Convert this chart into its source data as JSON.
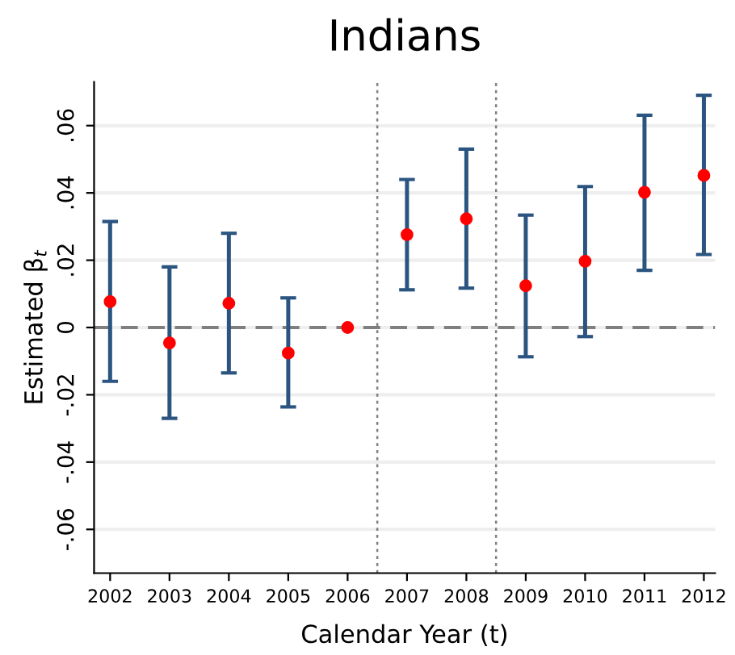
{
  "chart_data": {
    "type": "scatter",
    "title": "Indians",
    "xlabel": "Calendar Year (t)",
    "ylabel": "Estimated β$_{t}$",
    "x": [
      2002,
      2003,
      2004,
      2005,
      2006,
      2007,
      2008,
      2009,
      2010,
      2011,
      2012
    ],
    "series": [
      {
        "color": "#ff0000",
        "values": [
          0.0077,
          -0.0046,
          0.0072,
          -0.0076,
          0,
          0.0276,
          0.0323,
          0.0124,
          0.0197,
          0.0402,
          0.0452
        ],
        "errors": [
          [
            -0.016,
            0.0315
          ],
          [
            -0.027,
            0.018
          ],
          [
            -0.0135,
            0.028
          ],
          [
            -0.0236,
            0.0088
          ],
          null,
          [
            0.0112,
            0.044
          ],
          [
            0.0117,
            0.053
          ],
          [
            -0.0087,
            0.0334
          ],
          [
            -0.0027,
            0.0419
          ],
          [
            0.017,
            0.0631
          ],
          [
            0.0217,
            0.069
          ]
        ]
      }
    ],
    "xlim": [
      2001.73,
      2012.19
    ],
    "ylim": [
      -0.073,
      0.073
    ],
    "xticks": [
      2002,
      2003,
      2004,
      2005,
      2006,
      2007,
      2008,
      2009,
      2010,
      2011,
      2012
    ],
    "yticks": [
      {
        "value": -0.06,
        "label": "-.06"
      },
      {
        "value": -0.04,
        "label": "-.04"
      },
      {
        "value": -0.02,
        "label": "-.02"
      },
      {
        "value": 0,
        "label": "0"
      },
      {
        "value": 0.02,
        "label": ".02"
      },
      {
        "value": 0.04,
        "label": ".04"
      },
      {
        "value": 0.06,
        "label": ".06"
      }
    ],
    "ref_lines": [
      {
        "axis": "y",
        "value": 0,
        "color": "#7f7f7f",
        "line_style": "dashed"
      },
      {
        "axis": "x",
        "value": 2006.5,
        "color": "#7f7f7f",
        "line_style": "dotted"
      },
      {
        "axis": "x",
        "value": 2008.5,
        "color": "#7f7f7f",
        "line_style": "dotted"
      }
    ],
    "grid": "y",
    "marker": "circle",
    "legend": false
  }
}
